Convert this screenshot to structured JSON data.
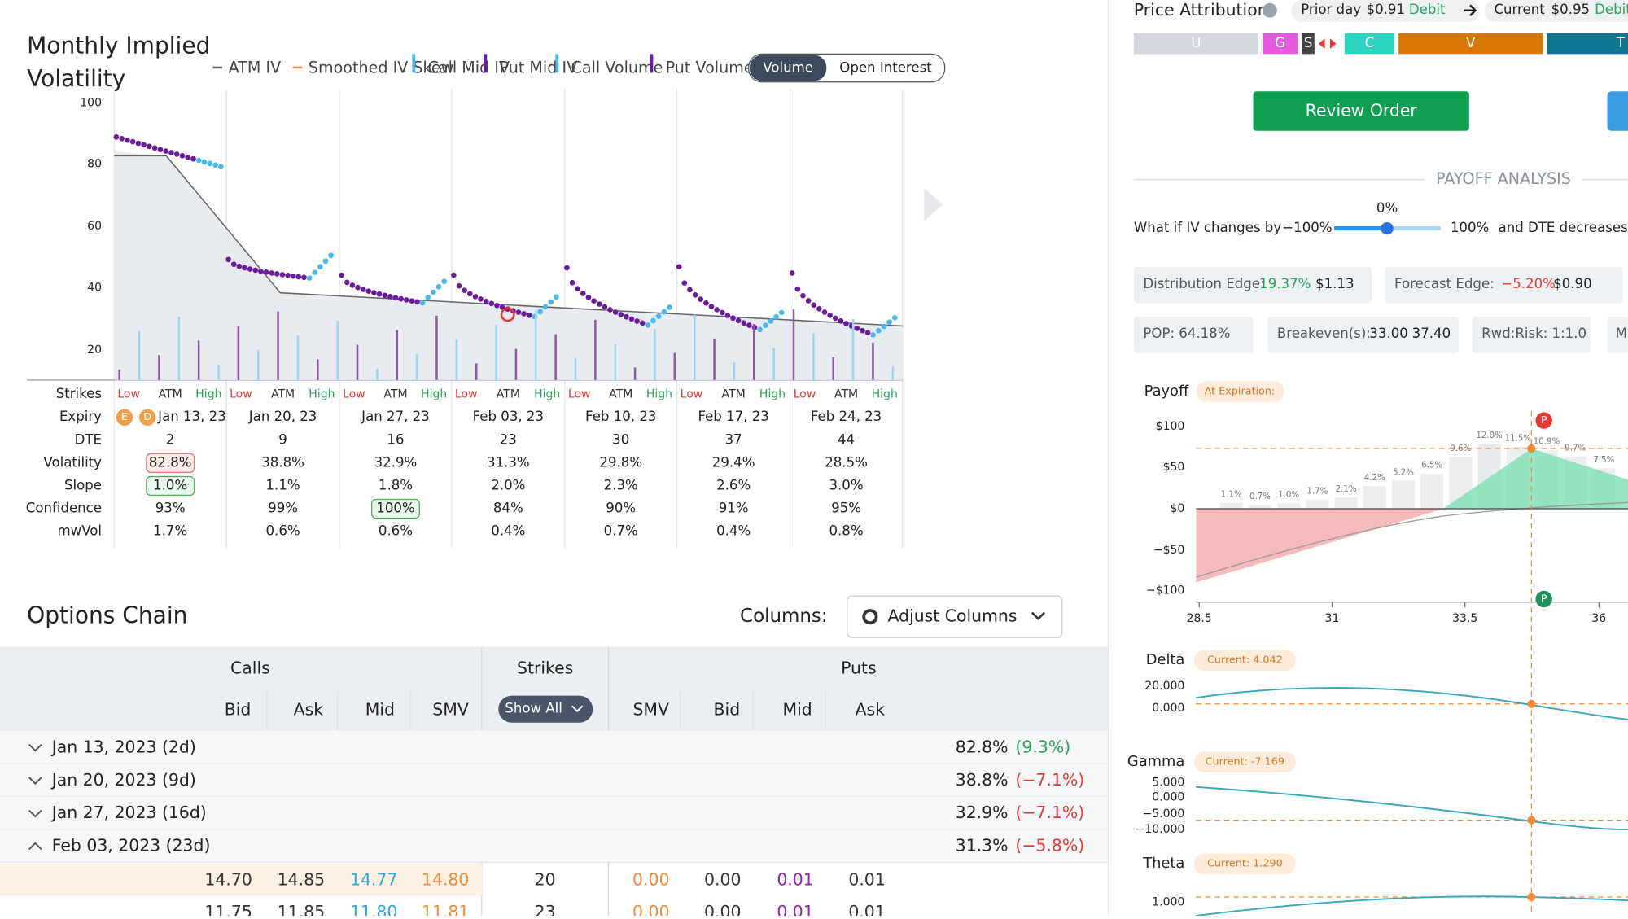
{
  "iv_panel": {
    "title": [
      "Monthly Implied",
      "Volatility"
    ],
    "legend": [
      "ATM IV",
      "Smoothed IV Skew",
      "Call Mid IV",
      "Put Mid IV",
      "Call Volume",
      "Put Volume"
    ],
    "toggle": [
      "Volume",
      "Open Interest"
    ],
    "yticks": [
      "100",
      "80",
      "60",
      "40",
      "20"
    ],
    "row_labels": [
      "Strikes",
      "Expiry",
      "DTE",
      "Volatility",
      "Slope",
      "Confidence",
      "mwVol"
    ],
    "strike_labels": [
      "Low",
      "ATM",
      "High"
    ],
    "badges": [
      "E",
      "D"
    ],
    "expiries": [
      {
        "expiry": "Jan 13, 23",
        "dte": "2",
        "volatility": "82.8%",
        "slope": "1.0%",
        "confidence": "93%",
        "mwvol": "1.7%"
      },
      {
        "expiry": "Jan 20, 23",
        "dte": "9",
        "volatility": "38.8%",
        "slope": "1.1%",
        "confidence": "99%",
        "mwvol": "0.6%"
      },
      {
        "expiry": "Jan 27, 23",
        "dte": "16",
        "volatility": "32.9%",
        "slope": "1.8%",
        "confidence": "100%",
        "mwvol": "0.6%"
      },
      {
        "expiry": "Feb 03, 23",
        "dte": "23",
        "volatility": "31.3%",
        "slope": "2.0%",
        "confidence": "84%",
        "mwvol": "0.4%"
      },
      {
        "expiry": "Feb 10, 23",
        "dte": "30",
        "volatility": "29.8%",
        "slope": "2.3%",
        "confidence": "90%",
        "mwvol": "0.7%"
      },
      {
        "expiry": "Feb 17, 23",
        "dte": "37",
        "volatility": "29.4%",
        "slope": "2.6%",
        "confidence": "91%",
        "mwvol": "0.4%"
      },
      {
        "expiry": "Feb 24, 23",
        "dte": "44",
        "volatility": "28.5%",
        "slope": "3.0%",
        "confidence": "95%",
        "mwvol": "0.8%"
      }
    ]
  },
  "options_chain": {
    "title": "Options Chain",
    "columns_label": "Columns:",
    "adjust": "Adjust Columns",
    "groups": [
      "Calls",
      "Strikes",
      "Puts"
    ],
    "headers": [
      "Bid",
      "Ask",
      "Mid",
      "SMV",
      "Show All",
      "SMV",
      "Bid",
      "Mid",
      "Ask"
    ],
    "expiry_rows": [
      {
        "label": "Jan 13, 2023 (2d)",
        "iv": "82.8%",
        "change": "(9.3%)"
      },
      {
        "label": "Jan 20, 2023 (9d)",
        "iv": "38.8%",
        "change": "(−7.1%)"
      },
      {
        "label": "Jan 27, 2023 (16d)",
        "iv": "32.9%",
        "change": "(−7.1%)"
      },
      {
        "label": "Feb 03, 2023 (23d)",
        "iv": "31.3%",
        "change": "(−5.8%)"
      }
    ],
    "quotes": [
      [
        "14.70",
        "14.85",
        "14.77",
        "14.80",
        "20",
        "0.00",
        "0.00",
        "0.01",
        "0.01"
      ],
      [
        "11.75",
        "11.85",
        "11.80",
        "11.81",
        "23",
        "0.00",
        "0.00",
        "0.01",
        "0.01"
      ]
    ]
  },
  "right_panel": {
    "price_attribution": "Price Attribution",
    "prior_day": "Prior day",
    "prior_value": "$0.91",
    "prior_kind": "Debit",
    "current": "Current",
    "current_value": "$0.95",
    "current_kind": "Debit",
    "segments": [
      "U",
      "G",
      "S",
      "C",
      "V",
      "T"
    ],
    "review": "Review Order",
    "payoff_analysis": "PAYOFF ANALYSIS",
    "what_if": "What if IV changes by",
    "iv_min": "−100%",
    "iv_value": "0%",
    "iv_max": "100%",
    "dte_text": "and DTE decreases b",
    "edges": [
      {
        "label": "Distribution Edge:",
        "pct": "19.37%",
        "value": "$1.13"
      },
      {
        "label": "Forecast Edge:",
        "pct": "−5.20%",
        "value": "$0.90"
      }
    ],
    "pop": "POP: 64.18%",
    "breakeven_label": "Breakeven(s):",
    "breakevens": [
      "33.00",
      "37.40"
    ],
    "rwd": "Rwd:Risk: 1:1.0",
    "cut": "M",
    "payoff": {
      "label": "Payoff",
      "badge": "At Expiration:",
      "yticks": [
        "$100",
        "$50",
        "$0",
        "−$50",
        "−$100"
      ],
      "xticks": [
        "28.5",
        "31",
        "33.5",
        "36"
      ],
      "bar_labels": [
        "1.1%",
        "0.7%",
        "1.0%",
        "1.7%",
        "2.1%",
        "4.2%",
        "5.2%",
        "6.5%",
        "9.6%",
        "12.0%",
        "11.5%",
        "10.9%",
        "9.7%",
        "7.5%"
      ],
      "markers": [
        "P",
        "P"
      ]
    },
    "greeks": [
      {
        "label": "Delta",
        "current": "Current: 4.042",
        "ticks": [
          "20.000",
          "0.000"
        ]
      },
      {
        "label": "Gamma",
        "current": "Current: -7.169",
        "ticks": [
          "5.000",
          "0.000",
          "−5.000",
          "−10.000"
        ]
      },
      {
        "label": "Theta",
        "current": "Current: 1.290",
        "ticks": [
          "1.000"
        ]
      }
    ]
  }
}
